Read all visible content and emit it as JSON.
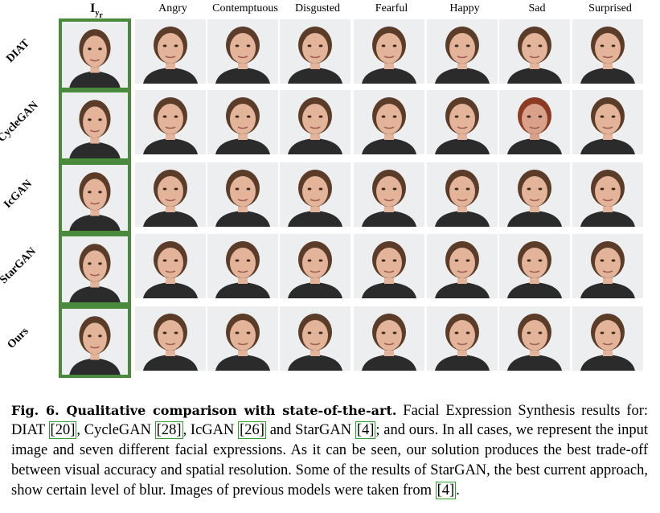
{
  "columns": {
    "input": "I",
    "input_sub": "y",
    "input_subsub": "r",
    "expressions": [
      "Angry",
      "Contemptuous",
      "Disgusted",
      "Fearful",
      "Happy",
      "Sad",
      "Surprised"
    ]
  },
  "rows": [
    "DIAT",
    "CycleGAN",
    "IcGAN",
    "StarGAN",
    "Ours"
  ],
  "caption": {
    "label": "Fig. 6. Qualitative comparison with state-of-the-art.",
    "t1": " Facial Expression Synthesis results for: DIAT ",
    "c1": "[20]",
    "t2": ", CycleGAN ",
    "c2": "[28]",
    "t3": ", IcGAN ",
    "c3": "[26]",
    "t4": " and StarGAN ",
    "c4": "[4]",
    "t5": "; and ours. In all cases, we represent the input image and seven different facial expressions. As it can be seen, our solution produces the best trade-off between visual accuracy and spatial resolution. Some of the results of StarGAN, the best current approach, show certain level of blur. Images of previous models were taken from ",
    "c5": "[4]",
    "t6": "."
  },
  "colors": {
    "input_border": "#4a8a3c",
    "citation_box": "#2aa02a"
  }
}
